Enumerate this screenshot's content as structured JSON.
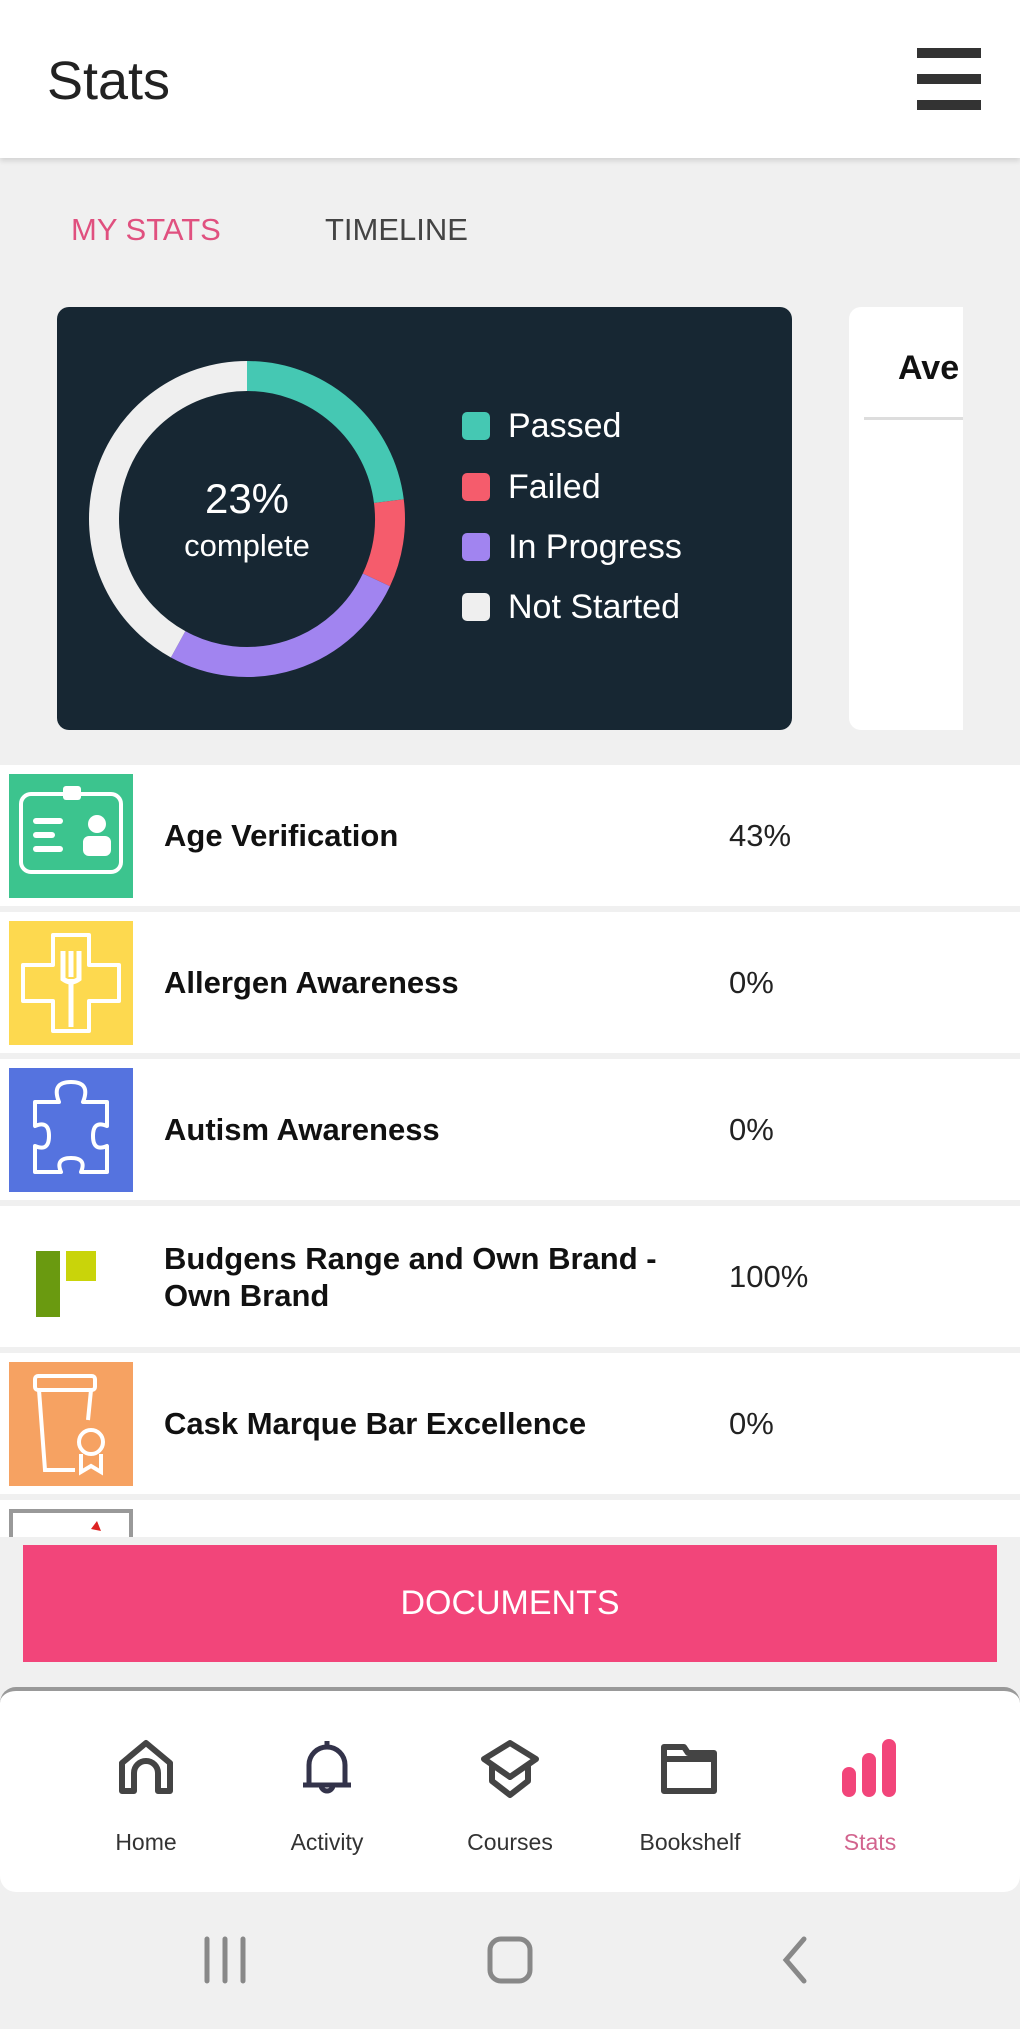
{
  "header": {
    "title": "Stats",
    "menu_icon": "hamburger-icon"
  },
  "tabs": [
    {
      "label": "MY STATS",
      "active": true
    },
    {
      "label": "TIMELINE",
      "active": false
    }
  ],
  "colors": {
    "accent": "#f2457a",
    "passed": "#45c8b3",
    "failed": "#f55c6c",
    "in_progress": "#a184f0",
    "not_started": "#efefef",
    "card_bg": "#172733"
  },
  "chart_data": {
    "type": "pie",
    "donut": true,
    "center_value": "23%",
    "center_label": "complete",
    "categories": [
      "Passed",
      "Failed",
      "In Progress",
      "Not Started"
    ],
    "values": [
      23,
      9,
      26,
      42
    ],
    "colors": [
      "#45c8b3",
      "#f55c6c",
      "#a184f0",
      "#efefef"
    ],
    "legend": "right"
  },
  "average_card": {
    "title": "Ave"
  },
  "courses": [
    {
      "name": "Age Verification",
      "percent": "43%",
      "icon": "id-card-icon",
      "color": "#3cc48e"
    },
    {
      "name": "Allergen Awareness",
      "percent": "0%",
      "icon": "fork-cross-icon",
      "color": "#fdd94f"
    },
    {
      "name": "Autism Awareness",
      "percent": "0%",
      "icon": "puzzle-icon",
      "color": "#5573df"
    },
    {
      "name": "Budgens Range and Own Brand - Own Brand",
      "percent": "100%",
      "icon": "budgens-logo-icon",
      "color": "#ffffff"
    },
    {
      "name": "Cask Marque Bar Excellence",
      "percent": "0%",
      "icon": "pint-award-icon",
      "color": "#f6a262"
    }
  ],
  "documents_button": "DOCUMENTS",
  "bottom_nav": [
    {
      "label": "Home",
      "icon": "home-icon"
    },
    {
      "label": "Activity",
      "icon": "bell-icon"
    },
    {
      "label": "Courses",
      "icon": "graduation-cap-icon"
    },
    {
      "label": "Bookshelf",
      "icon": "folder-icon"
    },
    {
      "label": "Stats",
      "icon": "bar-chart-icon",
      "active": true
    }
  ],
  "system_nav": [
    "recent-apps-icon",
    "home-button-icon",
    "back-icon"
  ]
}
